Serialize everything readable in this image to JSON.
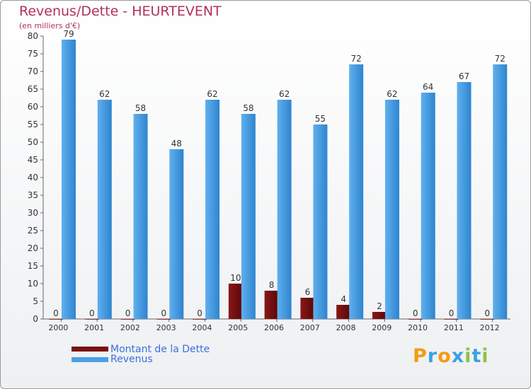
{
  "chart_data": {
    "type": "bar",
    "title": "Revenus/Dette - HEURTEVENT",
    "subtitle": "(en milliers d'€)",
    "categories": [
      "2000",
      "2001",
      "2002",
      "2003",
      "2004",
      "2005",
      "2006",
      "2007",
      "2008",
      "2009",
      "2010",
      "2011",
      "2012"
    ],
    "series": [
      {
        "name": "Montant de la Dette",
        "color": "#7a1010",
        "values": [
          0,
          0,
          0,
          0,
          0,
          10,
          8,
          6,
          4,
          2,
          0,
          0,
          0
        ]
      },
      {
        "name": "Revenus",
        "color": "#4a9fe6",
        "values": [
          79,
          62,
          58,
          48,
          62,
          58,
          62,
          55,
          72,
          62,
          64,
          67,
          72
        ]
      }
    ],
    "ylim": [
      0,
      80
    ],
    "yticks": [
      0,
      5,
      10,
      15,
      20,
      25,
      30,
      35,
      40,
      45,
      50,
      55,
      60,
      65,
      70,
      75,
      80
    ],
    "grid": false,
    "legend_position": "bottom-left"
  },
  "logo": {
    "letters": [
      "P",
      "r",
      "o",
      "x",
      "i",
      "t",
      "i"
    ],
    "colors": [
      "#f39c12",
      "#3aa1e0",
      "#f39c12",
      "#3aa1e0",
      "#8bc34a",
      "#3aa1e0",
      "#8bc34a"
    ]
  }
}
